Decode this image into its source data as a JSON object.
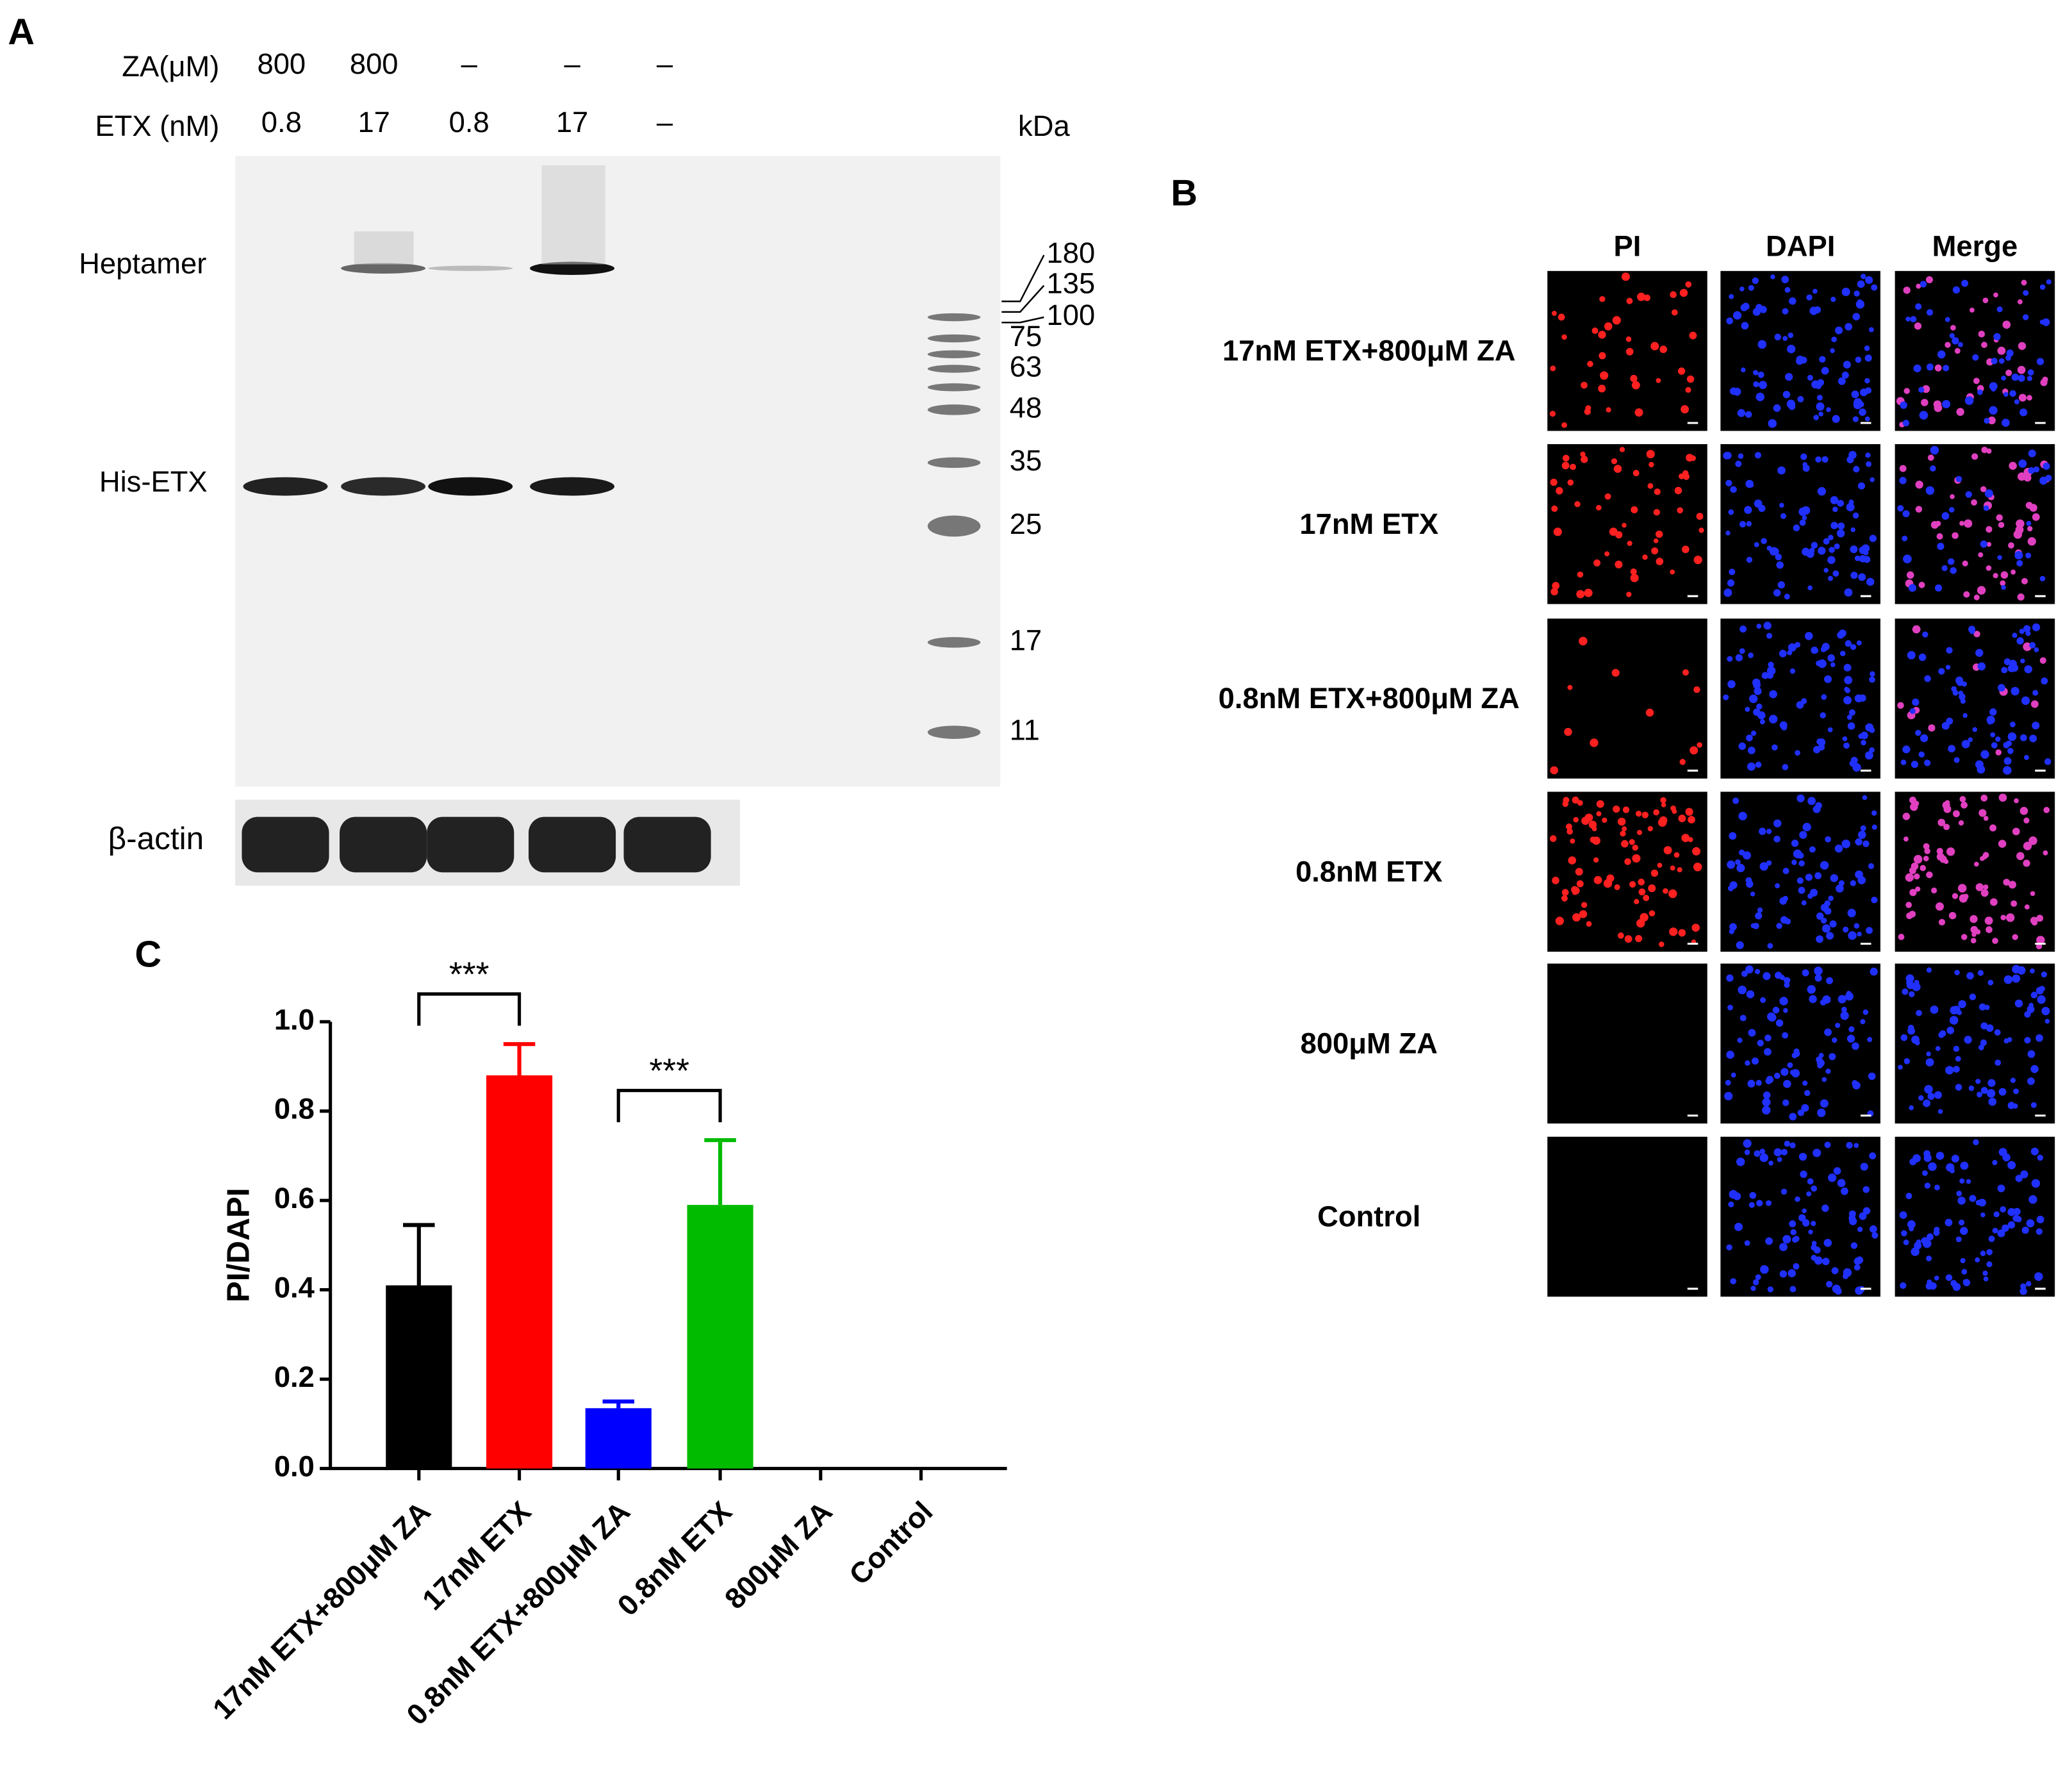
{
  "panel_a": {
    "label": "A",
    "row_labels": [
      "ZA(μM)",
      "ETX (nM)"
    ],
    "za": [
      "800",
      "800",
      "–",
      "–",
      "–"
    ],
    "etx": [
      "0.8",
      "17",
      "0.8",
      "17",
      "–"
    ],
    "unit": "kDa",
    "bands": [
      "Heptamer",
      "His-ETX"
    ],
    "loading_control": "β-actin",
    "markers": [
      180,
      135,
      100,
      75,
      63,
      48,
      35,
      25,
      17,
      11
    ]
  },
  "panel_b": {
    "label": "B",
    "columns": [
      "PI",
      "DAPI",
      "Merge"
    ],
    "rows": [
      "17nM ETX+800μM ZA",
      "17nM ETX",
      "0.8nM ETX+800μM ZA",
      "0.8nM ETX",
      "800μM ZA",
      "Control"
    ]
  },
  "chart_data": {
    "type": "bar",
    "panel_label": "C",
    "ylabel": "PI/DAPI",
    "categories": [
      "17nM ETX+800μM ZA",
      "17nM ETX",
      "0.8nM ETX+800μM ZA",
      "0.8nM ETX",
      "800μM ZA",
      "Control"
    ],
    "values": [
      0.41,
      0.88,
      0.135,
      0.59,
      0,
      0
    ],
    "errors": [
      0.135,
      0.07,
      0.015,
      0.145,
      null,
      null
    ],
    "colors": [
      "#000000",
      "#ff0000",
      "#0000ff",
      "#00bb00",
      "#000000",
      "#000000"
    ],
    "ylim": [
      0,
      1.0
    ],
    "yticks": [
      {
        "value": 0,
        "label": "0.0"
      },
      0.2,
      0.4,
      0.6,
      0.8,
      {
        "value": 1,
        "label": "1.0"
      }
    ],
    "annotations": [
      "***",
      "***"
    ]
  }
}
